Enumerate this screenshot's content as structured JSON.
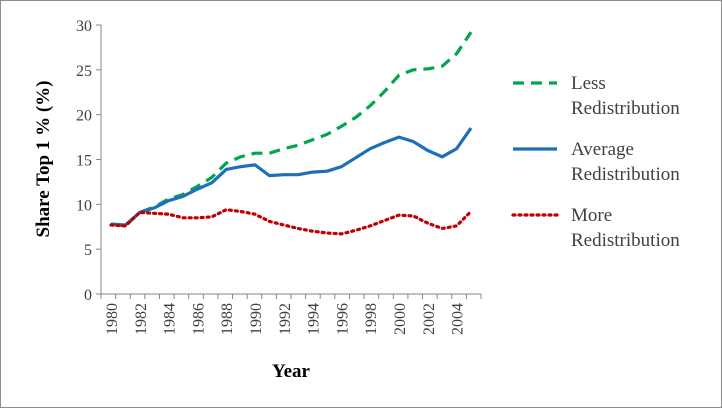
{
  "chart_data": {
    "type": "line",
    "title": "",
    "xlabel": "Year",
    "ylabel": "Share Top 1 % (%)",
    "ylim": [
      0,
      30
    ],
    "y_ticks": [
      0,
      5,
      10,
      15,
      20,
      25,
      30
    ],
    "x_tick_labels": [
      "1980",
      "1982",
      "1984",
      "1986",
      "1988",
      "1990",
      "1992",
      "1994",
      "1996",
      "1998",
      "2000",
      "2002",
      "2004"
    ],
    "x": [
      1980,
      1981,
      1982,
      1983,
      1984,
      1985,
      1986,
      1987,
      1988,
      1989,
      1990,
      1991,
      1992,
      1993,
      1994,
      1995,
      1996,
      1997,
      1998,
      1999,
      2000,
      2001,
      2002,
      2003,
      2004,
      2005
    ],
    "grid": false,
    "legend_position": "right",
    "series": [
      {
        "name": "Less Redistribution",
        "legend_lines": [
          "Less",
          "Redistribution"
        ],
        "color": "#00a550",
        "style": "dashed",
        "values": [
          7.8,
          7.6,
          9.1,
          9.7,
          10.6,
          11.1,
          12.0,
          13.0,
          14.6,
          15.3,
          15.7,
          15.7,
          16.2,
          16.6,
          17.2,
          17.8,
          18.7,
          19.7,
          21.0,
          22.6,
          24.4,
          25.0,
          25.1,
          25.4,
          26.8,
          29.2
        ]
      },
      {
        "name": "Average Redistribution",
        "legend_lines": [
          "Average",
          "Redistribution"
        ],
        "color": "#1f6fb8",
        "style": "solid",
        "values": [
          7.8,
          7.7,
          9.1,
          9.6,
          10.4,
          10.9,
          11.7,
          12.4,
          13.9,
          14.2,
          14.4,
          13.2,
          13.3,
          13.3,
          13.6,
          13.7,
          14.2,
          15.2,
          16.2,
          16.9,
          17.5,
          17.0,
          16.0,
          15.3,
          16.2,
          18.5
        ]
      },
      {
        "name": "More Redistribution",
        "legend_lines": [
          "More",
          "Redistribution"
        ],
        "color": "#c00000",
        "style": "dotted",
        "values": [
          7.7,
          7.6,
          9.1,
          9.0,
          8.9,
          8.5,
          8.5,
          8.6,
          9.4,
          9.2,
          8.9,
          8.1,
          7.7,
          7.3,
          7.0,
          6.8,
          6.7,
          7.1,
          7.6,
          8.2,
          8.8,
          8.7,
          7.9,
          7.3,
          7.6,
          9.2
        ]
      }
    ]
  }
}
